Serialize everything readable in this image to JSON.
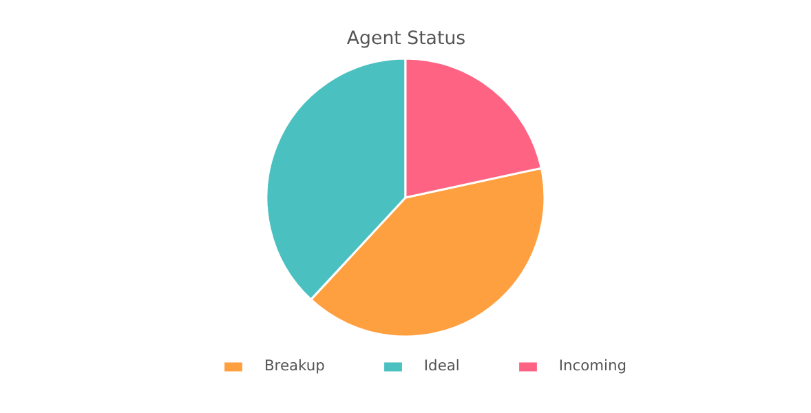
{
  "chart_data": {
    "type": "pie",
    "title": "Agent Status",
    "categories": [
      "Breakup",
      "Ideal",
      "Incoming"
    ],
    "values": [
      40.3,
      38.1,
      21.6
    ],
    "colors": [
      "#ffa040",
      "#4bc0c0",
      "#ff6384"
    ],
    "legend": "bottom"
  }
}
